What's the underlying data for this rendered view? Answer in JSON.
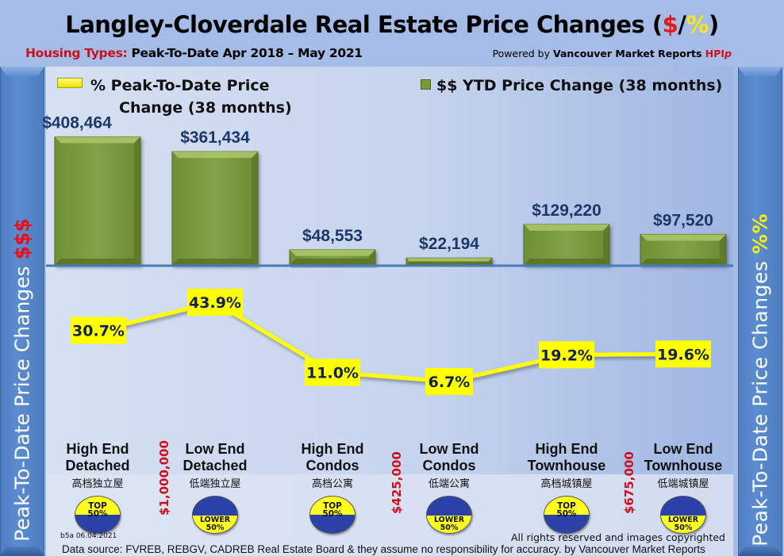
{
  "header": {
    "title_main": "Langley-Cloverdale Real Estate Price Changes (",
    "title_dollar": "$",
    "title_slash": "/",
    "title_pct": "%",
    "title_close": ")",
    "subtitle_red": "Housing Types:",
    "subtitle_rest": " Peak-To-Date Apr 2018 – May 2021",
    "powered_prefix": "Powered by ",
    "powered_brand": "Vancouver Market Reports ",
    "powered_hpi": "HPI",
    "powered_p": "p"
  },
  "side_labels": {
    "left_text": "Peak-To-Date Price Changes ",
    "left_symbol": "$$$",
    "right_text": "Peak-To-Date  Price  Changes  ",
    "right_symbol": "%%"
  },
  "legend": {
    "pct_line1": "% Peak-To-Date Price",
    "pct_line2": "Change (38 months)",
    "bar_label": "$$ YTD Price Change (38 months)",
    "pct_color": "#ffff00",
    "bar_color": "#7a9a3c"
  },
  "chart_data": {
    "type": "bar",
    "title": "Langley-Cloverdale Real Estate Price Changes ($/%)",
    "subtitle": "Housing Types: Peak-To-Date Apr 2018 – May 2021",
    "categories": [
      "High End Detached",
      "Low End Detached",
      "High End Condos",
      "Low End Condos",
      "High End Townhouse",
      "Low End Townhouse"
    ],
    "categories_zh": [
      "高档独立屋",
      "低端独立屋",
      "高档公寓",
      "低端公寓",
      "高档城镇屋",
      "低端城镇屋"
    ],
    "series": [
      {
        "name": "$$ YTD Price Change (38 months)",
        "type": "bar",
        "color": "#7a9a3c",
        "values": [
          408464,
          361434,
          48553,
          22194,
          129220,
          97520
        ],
        "labels": [
          "$408,464",
          "$361,434",
          "$48,553",
          "$22,194",
          "$129,220",
          "$97,520"
        ]
      },
      {
        "name": "% Peak-To-Date Price Change (38 months)",
        "type": "line",
        "color": "#ffff00",
        "values": [
          30.7,
          43.9,
          11.0,
          6.7,
          19.2,
          19.6
        ],
        "labels": [
          "30.7%",
          "43.9%",
          "11.0%",
          "6.7%",
          "19.2%",
          "19.6%"
        ]
      }
    ],
    "ylabel_left": "Peak-To-Date Price Changes $$$",
    "ylabel_right": "Peak-To-Date Price Changes %%",
    "bar_ylim": [
      0,
      420000
    ],
    "line_ylim": [
      0,
      50
    ],
    "grid": false,
    "legend_position": "top"
  },
  "badges": [
    {
      "line1": "TOP",
      "line2": "50%",
      "kind": "top"
    },
    {
      "line1": "LOWER",
      "line2": "50%",
      "kind": "lower"
    },
    {
      "line1": "TOP",
      "line2": "50%",
      "kind": "top"
    },
    {
      "line1": "LOWER",
      "line2": "50%",
      "kind": "lower"
    },
    {
      "line1": "TOP",
      "line2": "50%",
      "kind": "top"
    },
    {
      "line1": "LOWER",
      "line2": "50%",
      "kind": "lower"
    }
  ],
  "category_lines": [
    [
      "High End",
      "Detached"
    ],
    [
      "Low End",
      "Detached"
    ],
    [
      "High End",
      "Condos"
    ],
    [
      "Low End",
      "Condos"
    ],
    [
      "High End",
      "Townhouse"
    ],
    [
      "Low End",
      "Townhouse"
    ]
  ],
  "thresholds": [
    "$1,000,000",
    "$425,000",
    "$675,000"
  ],
  "footer": {
    "id": "b5a 06.04.2021",
    "rights": "All rights reserved and  images copyrighted",
    "source": "Data source: FVREB, REBGV, CADREB Real Estate Board & they assume no responsibility for accuracy. by Vancouver Market Reports"
  }
}
